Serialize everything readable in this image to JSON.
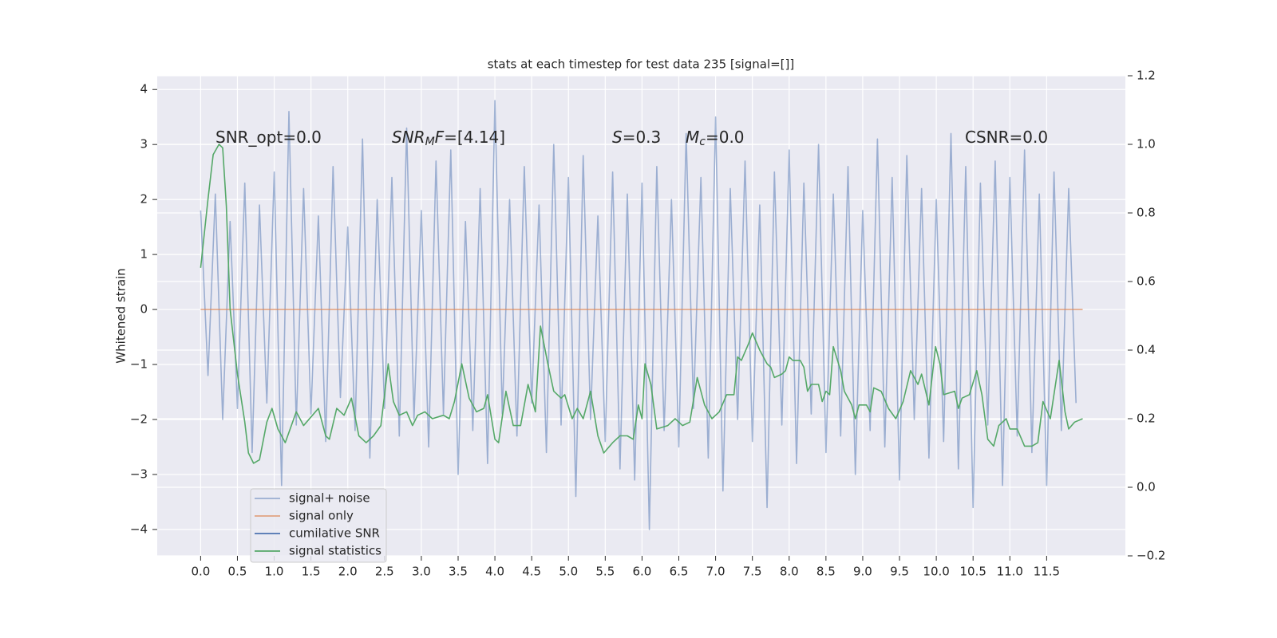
{
  "chart_data": {
    "type": "line",
    "title": "stats at each timestep for test data 235 [signal=[]]",
    "ylabel": "Whitened strain",
    "xlim": [
      -0.59,
      12.57
    ],
    "ylim": [
      -4.48,
      4.25
    ],
    "y2lim": [
      -0.2,
      1.2
    ],
    "grid": true,
    "legend": "lower left",
    "xticks": [
      {
        "value": 0,
        "label": "0.0"
      },
      {
        "value": 0.5,
        "label": "0.5"
      },
      {
        "value": 1,
        "label": "1.0"
      },
      {
        "value": 1.5,
        "label": "1.5"
      },
      {
        "value": 2,
        "label": "2.0"
      },
      {
        "value": 2.5,
        "label": "2.5"
      },
      {
        "value": 3,
        "label": "3.0"
      },
      {
        "value": 3.5,
        "label": "3.5"
      },
      {
        "value": 4,
        "label": "4.0"
      },
      {
        "value": 4.5,
        "label": "4.5"
      },
      {
        "value": 5,
        "label": "5.0"
      },
      {
        "value": 5.5,
        "label": "5.5"
      },
      {
        "value": 6,
        "label": "6.0"
      },
      {
        "value": 6.5,
        "label": "6.5"
      },
      {
        "value": 7,
        "label": "7.0"
      },
      {
        "value": 7.5,
        "label": "7.5"
      },
      {
        "value": 8,
        "label": "8.0"
      },
      {
        "value": 8.5,
        "label": "8.5"
      },
      {
        "value": 9,
        "label": "9.0"
      },
      {
        "value": 9.5,
        "label": "9.5"
      },
      {
        "value": 10,
        "label": "10.0"
      },
      {
        "value": 10.5,
        "label": "10.5"
      },
      {
        "value": 11,
        "label": "11.0"
      },
      {
        "value": 11.5,
        "label": "11.5"
      }
    ],
    "yticks": [
      {
        "value": -4,
        "label": "−4"
      },
      {
        "value": -3,
        "label": "−3"
      },
      {
        "value": -2,
        "label": "−2"
      },
      {
        "value": -1,
        "label": "−1"
      },
      0,
      1,
      2,
      3,
      4
    ],
    "y2ticks": [
      {
        "value": -0.2,
        "label": "−0.2"
      },
      {
        "value": 0,
        "label": "0.0"
      },
      0.2,
      0.4,
      0.6,
      0.8,
      {
        "value": 1,
        "label": "1.0"
      },
      1.2
    ],
    "annotations": [
      {
        "parts": [
          {
            "text": "SNR_opt=0.0"
          }
        ]
      },
      {
        "parts": [
          {
            "text": "SNR",
            "italic": true
          },
          {
            "text": "M",
            "italic": true,
            "sub": true
          },
          {
            "text": "F",
            "italic": true
          },
          {
            "text": "=[4.14]"
          }
        ]
      },
      {
        "parts": [
          {
            "text": "S",
            "italic": true
          },
          {
            "text": "=0.3"
          }
        ]
      },
      {
        "parts": [
          {
            "text": "M",
            "italic": true
          },
          {
            "text": "c",
            "italic": true,
            "sub": true
          },
          {
            "text": "=0.0"
          }
        ]
      },
      {
        "parts": [
          {
            "text": "CSNR=0.0"
          }
        ]
      }
    ],
    "series": [
      {
        "name": "signal+ noise",
        "color": "#4c72b0",
        "alpha": 0.5,
        "x": [
          0,
          0.1,
          0.2,
          0.3,
          0.4,
          0.5,
          0.6,
          0.7,
          0.8,
          0.9,
          1,
          1.1,
          1.2,
          1.3,
          1.4,
          1.5,
          1.6,
          1.7,
          1.8,
          1.9,
          2,
          2.1,
          2.2,
          2.3,
          2.4,
          2.5,
          2.6,
          2.7,
          2.8,
          2.9,
          3,
          3.1,
          3.2,
          3.3,
          3.4,
          3.5,
          3.6,
          3.7,
          3.8,
          3.9,
          4,
          4.1,
          4.2,
          4.3,
          4.4,
          4.5,
          4.6,
          4.7,
          4.8,
          4.9,
          5,
          5.1,
          5.2,
          5.3,
          5.4,
          5.5,
          5.6,
          5.7,
          5.8,
          5.9,
          6,
          6.1,
          6.2,
          6.3,
          6.4,
          6.5,
          6.6,
          6.7,
          6.8,
          6.9,
          7,
          7.1,
          7.2,
          7.3,
          7.4,
          7.5,
          7.6,
          7.7,
          7.8,
          7.9,
          8,
          8.1,
          8.2,
          8.3,
          8.4,
          8.5,
          8.6,
          8.7,
          8.8,
          8.9,
          9,
          9.1,
          9.2,
          9.3,
          9.4,
          9.5,
          9.6,
          9.7,
          9.8,
          9.9,
          10,
          10.1,
          10.2,
          10.3,
          10.4,
          10.5,
          10.6,
          10.7,
          10.8,
          10.9,
          11,
          11.1,
          11.2,
          11.3,
          11.4,
          11.5,
          11.6,
          11.7,
          11.8,
          11.9
        ],
        "values": [
          1.8,
          -1.2,
          2.1,
          -2.0,
          1.6,
          -1.8,
          2.3,
          -2.6,
          1.9,
          -1.7,
          2.5,
          -3.2,
          3.6,
          -2.1,
          2.2,
          -1.9,
          1.7,
          -2.4,
          2.6,
          -1.6,
          1.5,
          -2.2,
          3.1,
          -2.7,
          2.0,
          -1.8,
          2.4,
          -2.3,
          3.3,
          -2.0,
          1.8,
          -2.5,
          2.7,
          -1.9,
          2.9,
          -3.0,
          1.6,
          -2.2,
          2.2,
          -2.8,
          3.8,
          -1.9,
          2.0,
          -2.3,
          2.6,
          -1.7,
          1.9,
          -2.6,
          3.0,
          -2.1,
          2.4,
          -3.4,
          2.8,
          -2.0,
          1.7,
          -2.4,
          2.5,
          -2.9,
          2.1,
          -3.1,
          2.3,
          -4.0,
          2.6,
          -2.2,
          2.0,
          -2.5,
          3.2,
          -1.8,
          2.4,
          -2.7,
          3.5,
          -3.3,
          2.2,
          -2.0,
          2.7,
          -2.4,
          1.9,
          -3.6,
          2.5,
          -2.1,
          2.9,
          -2.8,
          2.3,
          -1.9,
          3.0,
          -2.6,
          2.1,
          -2.3,
          2.6,
          -3.0,
          1.8,
          -2.2,
          3.1,
          -2.5,
          2.4,
          -3.1,
          2.8,
          -2.0,
          2.2,
          -2.7,
          2.0,
          -2.4,
          3.2,
          -2.9,
          2.6,
          -3.6,
          2.3,
          -2.1,
          2.7,
          -3.2,
          2.4,
          -2.3,
          2.9,
          -2.6,
          2.1,
          -3.2,
          2.5,
          -2.2,
          2.2,
          -1.7
        ]
      },
      {
        "name": "signal only",
        "color": "#dd8452",
        "alpha": 0.7,
        "x": [
          0,
          11.99
        ],
        "values": [
          0,
          0
        ]
      },
      {
        "name": "cumilative SNR",
        "color": "#4c72b0",
        "x": [],
        "values": []
      },
      {
        "name": "signal statistics",
        "color": "#55a868",
        "axis": "y2",
        "x": [
          0,
          0.1,
          0.17,
          0.25,
          0.3,
          0.35,
          0.4,
          0.5,
          0.6,
          0.65,
          0.72,
          0.8,
          0.9,
          0.97,
          1.05,
          1.15,
          1.3,
          1.4,
          1.6,
          1.7,
          1.75,
          1.85,
          1.95,
          2.05,
          2.15,
          2.25,
          2.35,
          2.45,
          2.55,
          2.62,
          2.7,
          2.8,
          2.88,
          2.95,
          3.05,
          3.15,
          3.3,
          3.38,
          3.45,
          3.55,
          3.65,
          3.75,
          3.85,
          3.9,
          4.0,
          4.05,
          4.15,
          4.25,
          4.35,
          4.45,
          4.55,
          4.62,
          4.72,
          4.8,
          4.9,
          4.95,
          5.05,
          5.12,
          5.2,
          5.3,
          5.4,
          5.48,
          5.6,
          5.7,
          5.8,
          5.88,
          5.95,
          6.0,
          6.04,
          6.12,
          6.2,
          6.35,
          6.45,
          6.55,
          6.65,
          6.75,
          6.85,
          6.95,
          7.05,
          7.15,
          7.25,
          7.3,
          7.35,
          7.45,
          7.5,
          7.6,
          7.7,
          7.75,
          7.8,
          7.9,
          7.95,
          8.0,
          8.05,
          8.15,
          8.2,
          8.25,
          8.3,
          8.4,
          8.45,
          8.5,
          8.55,
          8.6,
          8.7,
          8.75,
          8.85,
          8.9,
          8.95,
          9.05,
          9.1,
          9.15,
          9.25,
          9.35,
          9.45,
          9.55,
          9.65,
          9.75,
          9.8,
          9.9,
          9.99,
          10.05,
          10.1,
          10.25,
          10.3,
          10.35,
          10.45,
          10.55,
          10.62,
          10.7,
          10.78,
          10.85,
          10.95,
          11.0,
          11.1,
          11.2,
          11.3,
          11.38,
          11.45,
          11.55,
          11.67,
          11.75,
          11.8,
          11.88,
          11.99
        ],
        "values": [
          0.64,
          0.84,
          0.97,
          1.0,
          0.99,
          0.82,
          0.52,
          0.33,
          0.19,
          0.1,
          0.07,
          0.08,
          0.19,
          0.23,
          0.17,
          0.13,
          0.22,
          0.18,
          0.23,
          0.15,
          0.14,
          0.23,
          0.21,
          0.26,
          0.15,
          0.13,
          0.15,
          0.18,
          0.36,
          0.25,
          0.21,
          0.22,
          0.18,
          0.21,
          0.22,
          0.2,
          0.21,
          0.2,
          0.25,
          0.36,
          0.26,
          0.22,
          0.23,
          0.27,
          0.14,
          0.13,
          0.28,
          0.18,
          0.18,
          0.3,
          0.22,
          0.47,
          0.36,
          0.28,
          0.26,
          0.27,
          0.2,
          0.23,
          0.2,
          0.28,
          0.15,
          0.1,
          0.13,
          0.15,
          0.15,
          0.14,
          0.24,
          0.2,
          0.36,
          0.3,
          0.17,
          0.18,
          0.2,
          0.18,
          0.19,
          0.32,
          0.24,
          0.2,
          0.22,
          0.27,
          0.27,
          0.38,
          0.37,
          0.42,
          0.45,
          0.4,
          0.36,
          0.35,
          0.32,
          0.33,
          0.34,
          0.38,
          0.37,
          0.37,
          0.35,
          0.28,
          0.3,
          0.3,
          0.25,
          0.28,
          0.27,
          0.41,
          0.34,
          0.28,
          0.24,
          0.2,
          0.24,
          0.24,
          0.22,
          0.29,
          0.28,
          0.23,
          0.2,
          0.25,
          0.34,
          0.3,
          0.33,
          0.24,
          0.41,
          0.36,
          0.27,
          0.28,
          0.23,
          0.26,
          0.27,
          0.34,
          0.27,
          0.14,
          0.12,
          0.18,
          0.2,
          0.17,
          0.17,
          0.12,
          0.12,
          0.13,
          0.25,
          0.2,
          0.37,
          0.22,
          0.17,
          0.19,
          0.2
        ]
      }
    ]
  }
}
